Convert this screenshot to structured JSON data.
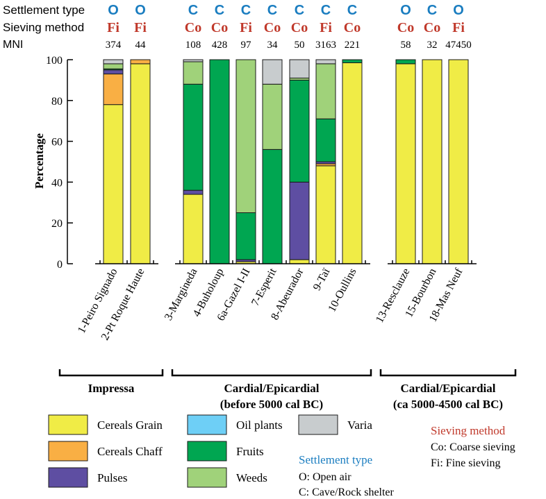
{
  "chart_data": {
    "type": "bar",
    "stacked": true,
    "ylabel": "Percentage",
    "ylim": [
      0,
      100
    ],
    "yticks": [
      0,
      20,
      40,
      60,
      80,
      100
    ],
    "header_labels": {
      "settlement": "Settlement type",
      "sieving": "Sieving method",
      "mni": "MNI"
    },
    "components": [
      {
        "name": "Cereals Grain",
        "color": "#F0EC46"
      },
      {
        "name": "Cereals Chaff",
        "color": "#F9AF44"
      },
      {
        "name": "Pulses",
        "color": "#5E4EA2"
      },
      {
        "name": "Oil plants",
        "color": "#6ECFF6"
      },
      {
        "name": "Fruits",
        "color": "#00A651"
      },
      {
        "name": "Weeds",
        "color": "#A0D27A"
      },
      {
        "name": "Varia",
        "color": "#C8CCCE"
      }
    ],
    "sites": [
      {
        "label": "1-Peiro Signado",
        "settlement": "O",
        "sieving": "Fi",
        "mni": "374",
        "group": 0,
        "values": {
          "Cereals Grain": 78,
          "Cereals Chaff": 15,
          "Pulses": 2,
          "Oil plants": 0,
          "Fruits": 0.5,
          "Weeds": 2.5,
          "Varia": 2
        }
      },
      {
        "label": "2-Pt Roque Haute",
        "settlement": "O",
        "sieving": "Fi",
        "mni": "44",
        "group": 0,
        "values": {
          "Cereals Grain": 98,
          "Cereals Chaff": 2,
          "Pulses": 0,
          "Oil plants": 0,
          "Fruits": 0,
          "Weeds": 0,
          "Varia": 0
        }
      },
      {
        "label": "3-Margineda",
        "settlement": "C",
        "sieving": "Co",
        "mni": "108",
        "group": 1,
        "values": {
          "Cereals Grain": 34,
          "Cereals Chaff": 0,
          "Pulses": 2,
          "Oil plants": 0,
          "Fruits": 52,
          "Weeds": 11,
          "Varia": 1
        }
      },
      {
        "label": "4-Buholoup",
        "settlement": "C",
        "sieving": "Co",
        "mni": "428",
        "group": 1,
        "values": {
          "Cereals Grain": 0,
          "Cereals Chaff": 0,
          "Pulses": 0,
          "Oil plants": 0,
          "Fruits": 100,
          "Weeds": 0,
          "Varia": 0
        }
      },
      {
        "label": "6a-Gazel I-II",
        "settlement": "C",
        "sieving": "Fi",
        "mni": "97",
        "group": 1,
        "values": {
          "Cereals Grain": 1,
          "Cereals Chaff": 0,
          "Pulses": 1,
          "Oil plants": 0,
          "Fruits": 23,
          "Weeds": 75,
          "Varia": 0
        }
      },
      {
        "label": "7-Esperit",
        "settlement": "C",
        "sieving": "Co",
        "mni": "34",
        "group": 1,
        "values": {
          "Cereals Grain": 0,
          "Cereals Chaff": 0,
          "Pulses": 0,
          "Oil plants": 0,
          "Fruits": 56,
          "Weeds": 32,
          "Varia": 12
        }
      },
      {
        "label": "8-Abeurador",
        "settlement": "C",
        "sieving": "Co",
        "mni": "50",
        "group": 1,
        "values": {
          "Cereals Grain": 2,
          "Cereals Chaff": 0,
          "Pulses": 38,
          "Oil plants": 0,
          "Fruits": 50,
          "Weeds": 1,
          "Varia": 9
        }
      },
      {
        "label": "9-Taï",
        "settlement": "C",
        "sieving": "Fi",
        "mni": "3163",
        "group": 1,
        "values": {
          "Cereals Grain": 48,
          "Cereals Chaff": 1,
          "Pulses": 1,
          "Oil plants": 0,
          "Fruits": 21,
          "Weeds": 27,
          "Varia": 2
        }
      },
      {
        "label": "10-Oullins",
        "settlement": "C",
        "sieving": "Co",
        "mni": "221",
        "group": 1,
        "values": {
          "Cereals Grain": 98.5,
          "Cereals Chaff": 0,
          "Pulses": 0,
          "Oil plants": 0,
          "Fruits": 1.5,
          "Weeds": 0,
          "Varia": 0
        }
      },
      {
        "label": "13-Resclauze",
        "settlement": "O",
        "sieving": "Co",
        "mni": "58",
        "group": 2,
        "values": {
          "Cereals Grain": 98,
          "Cereals Chaff": 0,
          "Pulses": 0,
          "Oil plants": 0,
          "Fruits": 2,
          "Weeds": 0,
          "Varia": 0
        }
      },
      {
        "label": "15-Bourbon",
        "settlement": "C",
        "sieving": "Co",
        "mni": "32",
        "group": 2,
        "values": {
          "Cereals Grain": 100,
          "Cereals Chaff": 0,
          "Pulses": 0,
          "Oil plants": 0,
          "Fruits": 0,
          "Weeds": 0,
          "Varia": 0
        }
      },
      {
        "label": "18-Mas Neuf",
        "settlement": "O",
        "sieving": "Fi",
        "mni": "47450",
        "group": 2,
        "values": {
          "Cereals Grain": 100,
          "Cereals Chaff": 0,
          "Pulses": 0,
          "Oil plants": 0,
          "Fruits": 0,
          "Weeds": 0,
          "Varia": 0
        }
      }
    ],
    "groups": [
      {
        "lines": [
          "Impressa"
        ]
      },
      {
        "lines": [
          "Cardial/Epicardial",
          "(before 5000 cal BC)"
        ]
      },
      {
        "lines": [
          "Cardial/Epicardial",
          "(ca 5000-4500 cal BC)"
        ]
      }
    ],
    "legend_notes": {
      "sieving_title": "Sieving method",
      "sieving_items": [
        "Co: Coarse sieving",
        "Fi: Fine sieving"
      ],
      "settlement_title": "Settlement type",
      "settlement_items": [
        "O: Open air",
        "C: Cave/Rock shelter"
      ]
    },
    "colors": {
      "settlement_blue": "#1A7DC0",
      "sieving_red": "#C0392B"
    }
  }
}
